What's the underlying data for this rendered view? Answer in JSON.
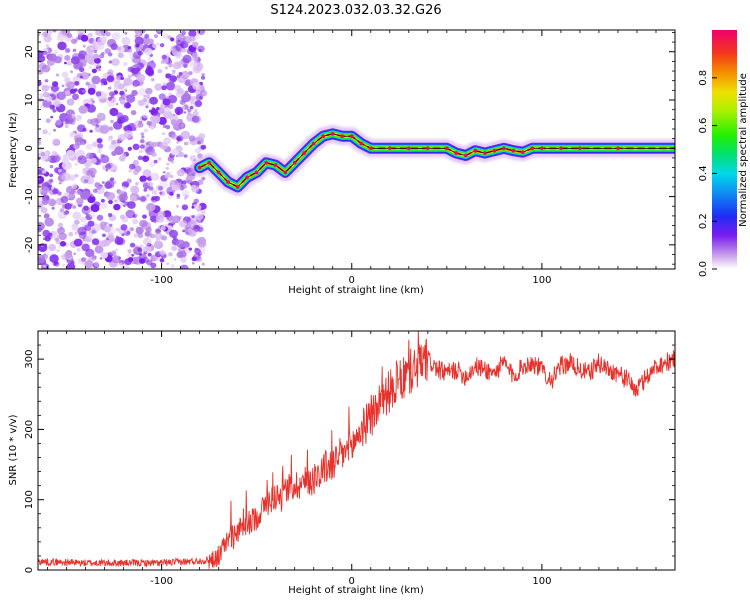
{
  "title": "S124.2023.032.03.32.G26",
  "chart_data": [
    {
      "type": "heatmap",
      "xlabel": "Height of straight line (km)",
      "ylabel": "Frequency (Hz)",
      "xlim": [
        -165,
        170
      ],
      "ylim": [
        -25,
        24.5
      ],
      "xticks": [
        -100,
        0,
        100
      ],
      "yticks": [
        -20,
        -10,
        0,
        10,
        20
      ],
      "noise_region_x": [
        -165,
        -80
      ],
      "colorbar": {
        "label": "Normalized spectral amplitude",
        "range": [
          0,
          1
        ],
        "ticks": [
          0.0,
          0.2,
          0.4,
          0.6,
          0.8
        ]
      },
      "ridge": {
        "x": [
          -80,
          -75,
          -70,
          -65,
          -60,
          -55,
          -50,
          -45,
          -40,
          -35,
          -30,
          -25,
          -20,
          -15,
          -10,
          -5,
          0,
          5,
          10,
          20,
          30,
          40,
          50,
          55,
          60,
          65,
          70,
          75,
          80,
          85,
          90,
          95,
          100,
          110,
          120,
          140,
          170
        ],
        "y": [
          -4,
          -3,
          -5,
          -7,
          -8,
          -6,
          -5,
          -3,
          -3.5,
          -5,
          -3,
          -1,
          1,
          2.5,
          3,
          2.5,
          2.5,
          1,
          0,
          0,
          0,
          0,
          0,
          -1,
          -1.5,
          -0.5,
          -1,
          -0.5,
          0,
          -0.5,
          -0.8,
          0,
          0,
          0,
          0,
          0,
          0
        ]
      }
    },
    {
      "type": "line",
      "xlabel": "Height of straight line (km)",
      "ylabel": "SNR (10 * v/v)",
      "xlim": [
        -165,
        170
      ],
      "ylim": [
        0,
        340
      ],
      "xticks": [
        -100,
        0,
        100
      ],
      "yticks": [
        0,
        100,
        200,
        300
      ],
      "color": "#e8312b",
      "series": [
        {
          "x": [
            -165,
            -140,
            -120,
            -100,
            -85,
            -75,
            -70,
            -65,
            -60,
            -55,
            -50,
            -45,
            -40,
            -35,
            -30,
            -25,
            -20,
            -15,
            -10,
            -5,
            0,
            5,
            10,
            15,
            20,
            25,
            30,
            35,
            40,
            45,
            50,
            55,
            60,
            65,
            70,
            75,
            80,
            85,
            90,
            95,
            100,
            105,
            110,
            115,
            120,
            125,
            130,
            135,
            140,
            145,
            150,
            155,
            160,
            165,
            170
          ],
          "values": [
            12,
            10,
            10,
            10,
            12,
            14,
            20,
            45,
            55,
            65,
            75,
            95,
            105,
            115,
            120,
            125,
            130,
            145,
            150,
            165,
            175,
            200,
            215,
            240,
            255,
            265,
            280,
            290,
            300,
            285,
            280,
            285,
            275,
            290,
            285,
            280,
            295,
            275,
            290,
            295,
            285,
            270,
            290,
            295,
            285,
            280,
            295,
            285,
            280,
            270,
            255,
            275,
            290,
            295,
            300
          ]
        }
      ]
    }
  ]
}
